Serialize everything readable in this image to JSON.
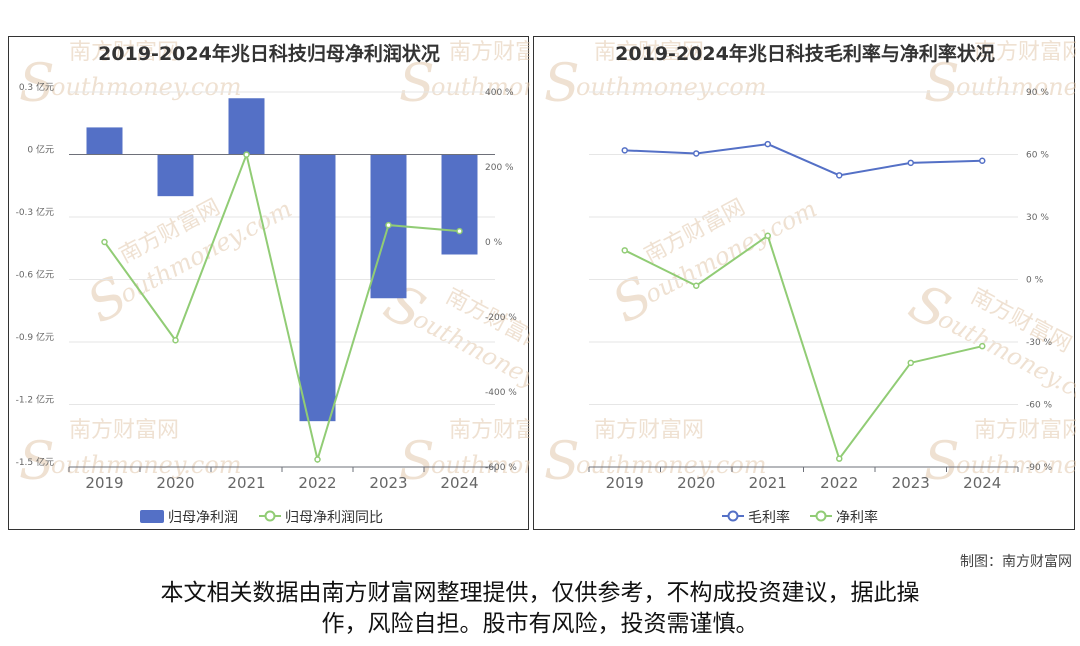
{
  "charts": {
    "left": {
      "title": "2019-2024年兆日科技归母净利润状况",
      "legend": [
        "归母净利润",
        "归母净利润同比"
      ],
      "y_left_ticks": [
        "0.3 亿元",
        "0 亿元",
        "-0.3 亿元",
        "-0.6 亿元",
        "-0.9 亿元",
        "-1.2 亿元",
        "-1.5 亿元"
      ],
      "y_right_ticks": [
        "400 %",
        "200 %",
        "0 %",
        "-200 %",
        "-400 %",
        "-600 %"
      ]
    },
    "right": {
      "title": "2019-2024年兆日科技毛利率与净利率状况",
      "legend": [
        "毛利率",
        "净利率"
      ],
      "y_right_ticks": [
        "90 %",
        "60 %",
        "30 %",
        "0 %",
        "-30 %",
        "-60 %",
        "-90 %"
      ]
    }
  },
  "chart_data": [
    {
      "type": "bar",
      "title": "2019-2024年兆日科技归母净利润状况",
      "categories": [
        "2019",
        "2020",
        "2021",
        "2022",
        "2023",
        "2024"
      ],
      "series": [
        {
          "name": "归母净利润",
          "type": "bar",
          "axis": "left",
          "unit": "亿元",
          "values": [
            0.13,
            -0.2,
            0.27,
            -1.28,
            -0.69,
            -0.48
          ]
        },
        {
          "name": "归母净利润同比",
          "type": "line",
          "axis": "right",
          "unit": "%",
          "values": [
            0,
            -262,
            233,
            -580,
            45,
            29
          ]
        }
      ],
      "ylim_left": [
        -1.5,
        0.3
      ],
      "ylim_right": [
        -600,
        400
      ],
      "colors": {
        "bar": "#5470c6",
        "line": "#91cc75"
      },
      "legend_position": "bottom",
      "grid": true
    },
    {
      "type": "line",
      "title": "2019-2024年兆日科技毛利率与净利率状况",
      "categories": [
        "2019",
        "2020",
        "2021",
        "2022",
        "2023",
        "2024"
      ],
      "series": [
        {
          "name": "毛利率",
          "unit": "%",
          "values": [
            62,
            60.5,
            65,
            50,
            56,
            57
          ]
        },
        {
          "name": "净利率",
          "unit": "%",
          "values": [
            14,
            -3,
            21,
            -86,
            -40,
            -32
          ]
        }
      ],
      "ylim": [
        -90,
        90
      ],
      "colors": {
        "毛利率": "#5470c6",
        "净利率": "#91cc75"
      },
      "legend_position": "bottom",
      "grid": true
    }
  ],
  "watermark": {
    "cn": "南方财富网",
    "en": "outhmoney.com",
    "en_initial": "S"
  },
  "credit": "制图：南方财富网",
  "disclaimer": {
    "line1": "本文相关数据由南方财富网整理提供，仅供参考，不构成投资建议，据此操",
    "line2": "作，风险自担。股市有风险，投资需谨慎。"
  }
}
